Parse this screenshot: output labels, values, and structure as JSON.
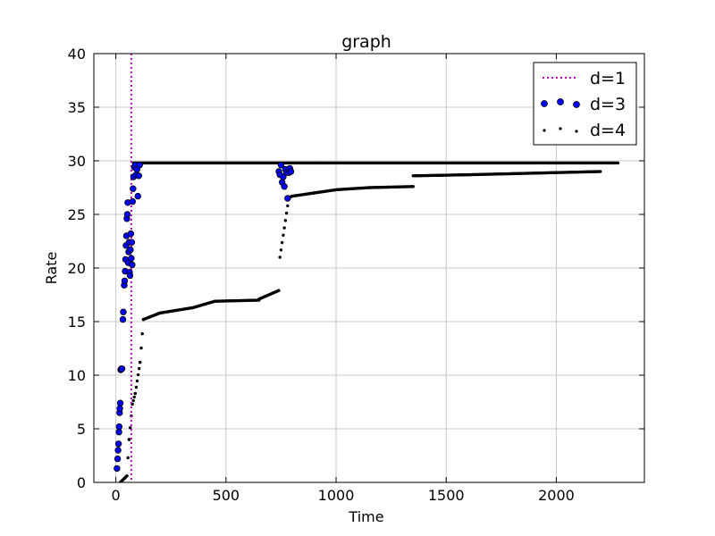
{
  "chart_data": {
    "type": "scatter",
    "title": "graph",
    "xlabel": "Time",
    "ylabel": "Rate",
    "xlim": [
      -100,
      2400
    ],
    "ylim": [
      0,
      40
    ],
    "xticks": [
      0,
      500,
      1000,
      1500,
      2000
    ],
    "yticks": [
      0,
      5,
      10,
      15,
      20,
      25,
      30,
      35,
      40
    ],
    "grid": true,
    "legend_position": "top-right",
    "series": [
      {
        "name": "d=1",
        "style": "vertical-dotted-line",
        "color": "#bf00bf",
        "x_value": 70
      },
      {
        "name": "d=3",
        "style": "markers",
        "color": "#0000ff",
        "points": [
          [
            5,
            1.3
          ],
          [
            8,
            2.2
          ],
          [
            10,
            3.0
          ],
          [
            12,
            3.6
          ],
          [
            14,
            4.7
          ],
          [
            15,
            5.2
          ],
          [
            17,
            6.5
          ],
          [
            18,
            6.9
          ],
          [
            20,
            7.4
          ],
          [
            22,
            10.5
          ],
          [
            25,
            10.6
          ],
          [
            28,
            10.6
          ],
          [
            32,
            15.2
          ],
          [
            34,
            15.9
          ],
          [
            38,
            18.4
          ],
          [
            40,
            18.8
          ],
          [
            42,
            19.7
          ],
          [
            44,
            20.8
          ],
          [
            46,
            22.1
          ],
          [
            48,
            23.0
          ],
          [
            50,
            24.6
          ],
          [
            52,
            25.0
          ],
          [
            54,
            26.1
          ],
          [
            56,
            20.5
          ],
          [
            58,
            21.5
          ],
          [
            60,
            22.4
          ],
          [
            62,
            19.6
          ],
          [
            64,
            19.3
          ],
          [
            66,
            21.7
          ],
          [
            68,
            23.2
          ],
          [
            70,
            20.9
          ],
          [
            72,
            22.4
          ],
          [
            74,
            20.3
          ],
          [
            76,
            26.2
          ],
          [
            78,
            27.4
          ],
          [
            80,
            28.5
          ],
          [
            84,
            29.4
          ],
          [
            88,
            29.6
          ],
          [
            92,
            28.7
          ],
          [
            96,
            29.2
          ],
          [
            100,
            26.7
          ],
          [
            104,
            28.6
          ],
          [
            108,
            29.6
          ],
          [
            740,
            29.0
          ],
          [
            745,
            28.7
          ],
          [
            750,
            29.6
          ],
          [
            755,
            28.0
          ],
          [
            760,
            28.5
          ],
          [
            765,
            27.6
          ],
          [
            770,
            29.2
          ],
          [
            775,
            28.9
          ],
          [
            780,
            26.5
          ],
          [
            785,
            28.9
          ],
          [
            790,
            29.3
          ],
          [
            795,
            29.0
          ]
        ]
      },
      {
        "name": "d=4",
        "style": "small-dots",
        "color": "#000000",
        "segments": [
          {
            "x_start": 20,
            "x_end": 50,
            "y_start": 0.0,
            "y_end": 0.6
          },
          {
            "x_start": 50,
            "x_end": 60,
            "y_start": 0.6,
            "y_end": 4.0
          },
          {
            "x_start": 60,
            "x_end": 75,
            "y_start": 4.0,
            "y_end": 7.3
          },
          {
            "x_start": 75,
            "x_end": 88,
            "y_start": 7.3,
            "y_end": 8.3
          },
          {
            "x_start": 88,
            "x_end": 110,
            "y_start": 8.3,
            "y_end": 11.2
          },
          {
            "x_start": 110,
            "x_end": 125,
            "y_start": 11.2,
            "y_end": 15.2
          },
          {
            "x_start": 125,
            "x_end": 200,
            "y_start": 15.2,
            "y_end": 15.8
          },
          {
            "x_start": 200,
            "x_end": 350,
            "y_start": 15.8,
            "y_end": 16.3
          },
          {
            "x_start": 350,
            "x_end": 450,
            "y_start": 16.3,
            "y_end": 16.9
          },
          {
            "x_start": 450,
            "x_end": 650,
            "y_start": 16.9,
            "y_end": 17.0
          },
          {
            "x_start": 650,
            "x_end": 740,
            "y_start": 17.1,
            "y_end": 17.9
          },
          {
            "x_start": 745,
            "x_end": 780,
            "y_start": 21.0,
            "y_end": 25.8
          },
          {
            "x_start": 780,
            "x_end": 800,
            "y_start": 26.5,
            "y_end": 26.7
          },
          {
            "x_start": 800,
            "x_end": 900,
            "y_start": 26.7,
            "y_end": 27.0
          },
          {
            "x_start": 900,
            "x_end": 1000,
            "y_start": 27.0,
            "y_end": 27.3
          },
          {
            "x_start": 1000,
            "x_end": 1150,
            "y_start": 27.3,
            "y_end": 27.5
          },
          {
            "x_start": 1150,
            "x_end": 1350,
            "y_start": 27.5,
            "y_end": 27.6
          },
          {
            "x_start": 1350,
            "x_end": 1600,
            "y_start": 28.6,
            "y_end": 28.7
          },
          {
            "x_start": 1600,
            "x_end": 1800,
            "y_start": 28.7,
            "y_end": 28.8
          },
          {
            "x_start": 1800,
            "x_end": 2000,
            "y_start": 28.8,
            "y_end": 28.9
          },
          {
            "x_start": 2000,
            "x_end": 2200,
            "y_start": 28.9,
            "y_end": 29.0
          },
          {
            "x_start": 80,
            "x_end": 2280,
            "y_start": 29.8,
            "y_end": 29.8
          }
        ]
      }
    ]
  }
}
